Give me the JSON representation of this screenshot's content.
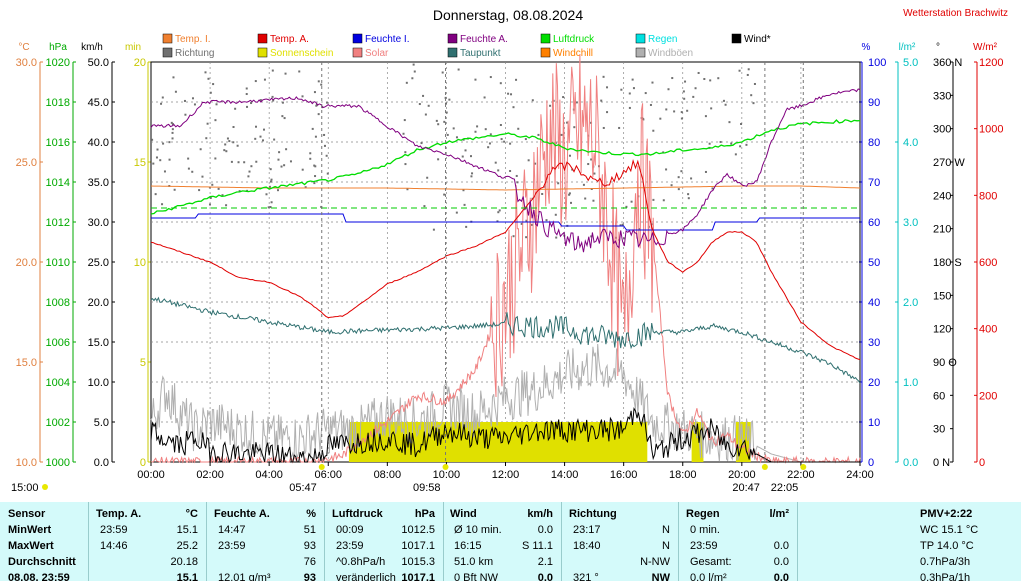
{
  "title": "Donnerstag, 08.08.2024",
  "station": "Wetterstation Brachwitz",
  "colors": {
    "temp_i": "#f08030",
    "temp_a": "#e00000",
    "feuchte_i": "#0000e0",
    "feuchte_a": "#800080",
    "luftdruck": "#00dd00",
    "regen": "#00e0e0",
    "wind": "#000000",
    "richtung": "#707070",
    "sonnenschein": "#e0e000",
    "solar": "#f08080",
    "taupunkt": "#307070",
    "windchill": "#ff8000",
    "windboeen": "#b0b0b0",
    "axis_kmh": "#000000",
    "axis_min": "#c8c800"
  },
  "legend": [
    {
      "label": "Temp. I.",
      "color": "#f08030"
    },
    {
      "label": "Temp. A.",
      "color": "#e00000"
    },
    {
      "label": "Feuchte I.",
      "color": "#0000e0"
    },
    {
      "label": "Feuchte A.",
      "color": "#800080"
    },
    {
      "label": "Luftdruck",
      "color": "#00dd00"
    },
    {
      "label": "Regen",
      "color": "#00e0e0"
    },
    {
      "label": "Wind*",
      "color": "#000000"
    },
    {
      "label": "Richtung",
      "color": "#707070"
    },
    {
      "label": "Sonnenschein",
      "color": "#e0e000"
    },
    {
      "label": "Solar",
      "color": "#f08080"
    },
    {
      "label": "Taupunkt",
      "color": "#307070"
    },
    {
      "label": "Windchill",
      "color": "#ff8000"
    },
    {
      "label": "Windböen",
      "color": "#b0b0b0"
    }
  ],
  "axis_units": {
    "celsius": "°C",
    "hpa": "hPa",
    "kmh": "km/h",
    "min": "min",
    "percent": "%",
    "lm2": "l/m²",
    "deg": "°",
    "wm2": "W/m²"
  },
  "chart_data": {
    "type": "line",
    "title": "Donnerstag, 08.08.2024",
    "x_unit": "hours",
    "xlim": [
      0,
      24
    ],
    "x_tick_labels": [
      "00:00",
      "02:00",
      "04:00",
      "06:00",
      "08:00",
      "10:00",
      "12:00",
      "14:00",
      "16:00",
      "18:00",
      "20:00",
      "22:00",
      "24:00"
    ],
    "axes": {
      "celsius": {
        "range": [
          10,
          30
        ],
        "ticks": [
          "30.0",
          "25.0",
          "20.0",
          "15.0",
          "10.0"
        ]
      },
      "hpa": {
        "range": [
          1000,
          1020
        ],
        "ticks": [
          "1020",
          "1018",
          "1016",
          "1014",
          "1012",
          "1010",
          "1008",
          "1006",
          "1004",
          "1002",
          "1000"
        ]
      },
      "kmh": {
        "range": [
          0,
          50
        ],
        "ticks": [
          "50.0",
          "45.0",
          "40.0",
          "35.0",
          "30.0",
          "25.0",
          "20.0",
          "15.0",
          "10.0",
          "5.0",
          "0.0"
        ]
      },
      "min": {
        "range": [
          0,
          20
        ],
        "ticks": [
          "20",
          "15",
          "10",
          "5",
          "0"
        ]
      },
      "percent": {
        "range": [
          0,
          100
        ],
        "ticks": [
          "100",
          "90",
          "80",
          "70",
          "60",
          "50",
          "40",
          "30",
          "20",
          "10",
          "0"
        ]
      },
      "lm2": {
        "range": [
          0,
          5
        ],
        "ticks": [
          "5.0",
          "4.0",
          "3.0",
          "2.0",
          "1.0",
          "0.0"
        ]
      },
      "deg": {
        "range": [
          0,
          360
        ],
        "ticks": [
          "360 N",
          "330",
          "300",
          "270 W",
          "240",
          "210",
          "180 S",
          "150",
          "120",
          "90 O",
          "60",
          "30",
          "0 N"
        ]
      },
      "wm2": {
        "range": [
          0,
          1200
        ],
        "ticks": [
          "1200",
          "1000",
          "800",
          "600",
          "400",
          "200",
          "0"
        ]
      }
    },
    "series": [
      {
        "name": "Temp. A.",
        "axis": "celsius",
        "x": [
          0,
          1,
          2,
          3,
          4,
          5,
          5.5,
          6,
          6.5,
          7,
          8,
          9,
          10,
          11,
          12,
          13,
          13.5,
          14,
          14.5,
          15,
          15.5,
          16,
          16.5,
          17,
          17.5,
          18,
          18.5,
          19,
          19.5,
          20,
          20.5,
          21,
          22,
          23,
          24
        ],
        "values": [
          21.0,
          20.5,
          20.0,
          19.2,
          19.0,
          18.3,
          17.8,
          17.2,
          17.3,
          17.8,
          18.9,
          19.5,
          20.3,
          20.8,
          21.5,
          23.3,
          24.5,
          24.8,
          24.6,
          24.0,
          24.0,
          24.5,
          25.0,
          21.5,
          20.0,
          19.5,
          20.0,
          21.0,
          21.5,
          21.5,
          21.0,
          19.5,
          17.0,
          15.8,
          15.1
        ]
      },
      {
        "name": "Taupunkt",
        "axis": "celsius",
        "x": [
          0,
          2,
          4,
          6,
          8,
          10,
          12,
          13,
          14,
          15,
          16,
          17,
          18,
          19,
          20,
          21,
          22,
          23,
          24
        ],
        "values": [
          18.2,
          17.5,
          17.0,
          16.5,
          16.6,
          16.7,
          16.9,
          16.8,
          16.7,
          16.3,
          16.2,
          16.5,
          16.5,
          16.8,
          16.5,
          16.0,
          15.5,
          14.9,
          14.0
        ]
      },
      {
        "name": "Temp. I.",
        "axis": "celsius",
        "x": [
          0,
          4,
          8,
          12,
          16,
          20,
          22,
          24
        ],
        "values": [
          23.8,
          23.7,
          23.7,
          23.6,
          23.7,
          23.8,
          23.8,
          23.7
        ]
      },
      {
        "name": "Feuchte A.",
        "axis": "percent",
        "x": [
          0,
          1,
          1.8,
          3,
          5,
          5.8,
          6.2,
          7,
          8,
          9,
          10,
          11,
          12,
          13,
          13.5,
          14,
          14.5,
          15,
          16,
          17,
          17.5,
          18,
          18.5,
          19,
          19.5,
          20,
          20.5,
          21,
          21.5,
          22,
          23,
          24
        ],
        "values": [
          84,
          84,
          90,
          90,
          91,
          89,
          89,
          89,
          84,
          79,
          77,
          74,
          71,
          62,
          58,
          56,
          54,
          56,
          56,
          55,
          57,
          58,
          62,
          68,
          72,
          69,
          70,
          80,
          88,
          89,
          92,
          93
        ]
      },
      {
        "name": "Feuchte I.",
        "axis": "percent",
        "x": [
          0,
          1.5,
          1.6,
          6.5,
          6.6,
          13.8,
          13.9,
          16,
          16.1,
          19,
          19.1,
          20.5,
          20.6,
          24
        ],
        "values": [
          61,
          61,
          62,
          62,
          60,
          60,
          59,
          59,
          58,
          58,
          60,
          60,
          61,
          61
        ]
      },
      {
        "name": "Luftdruck",
        "axis": "hpa",
        "x": [
          0,
          1,
          2,
          3,
          4,
          5,
          6,
          7,
          8,
          9,
          10,
          11,
          12,
          13,
          14,
          15,
          16,
          17,
          18,
          19,
          20,
          21,
          22,
          23,
          24
        ],
        "values": [
          1012.4,
          1012.8,
          1013.2,
          1013.5,
          1013.7,
          1013.9,
          1014.1,
          1014.4,
          1014.9,
          1015.6,
          1016.0,
          1016.2,
          1016.4,
          1016.2,
          1015.7,
          1015.5,
          1015.4,
          1015.4,
          1015.6,
          1015.7,
          1016.0,
          1016.6,
          1016.9,
          1017.0,
          1017.1
        ]
      },
      {
        "name": "Windböen",
        "axis": "kmh",
        "x": [
          0,
          0.5,
          1,
          1.5,
          2,
          3,
          4,
          5,
          6,
          7,
          8,
          9,
          10,
          11,
          12,
          13,
          14,
          15,
          16,
          17,
          18,
          19,
          20,
          21,
          22,
          23,
          24
        ],
        "values": [
          5,
          9,
          6,
          4,
          5,
          4,
          3,
          3,
          4,
          4,
          6,
          5,
          7,
          6,
          8,
          9,
          11,
          12,
          11,
          5,
          4,
          3,
          3,
          1,
          0,
          0,
          0
        ]
      },
      {
        "name": "Wind*",
        "axis": "kmh",
        "x": [
          0,
          0.3,
          1,
          1.5,
          2,
          3,
          4,
          5,
          5.5,
          6,
          7,
          8,
          9,
          10,
          11,
          12,
          13,
          14,
          15,
          16,
          16.5,
          17,
          17.5,
          18,
          19,
          19.5,
          20,
          20.5,
          21,
          22,
          23,
          24
        ],
        "values": [
          4,
          3,
          2,
          3,
          1.5,
          1,
          1,
          0.5,
          0.5,
          2,
          2.5,
          3,
          2,
          4,
          3,
          3,
          4,
          4,
          4,
          4,
          7,
          1,
          2,
          3,
          4,
          2,
          2,
          1,
          0,
          0,
          0,
          0
        ]
      },
      {
        "name": "Solar",
        "axis": "wm2",
        "x": [
          0,
          5.5,
          6.5,
          7,
          8,
          8.5,
          9,
          10,
          11,
          12,
          12.5,
          13,
          13.5,
          14,
          14.5,
          15,
          15.5,
          16,
          16.5,
          17,
          17.5,
          18,
          18.5,
          19,
          19.5,
          20,
          20.5,
          21,
          24
        ],
        "values": [
          0,
          0,
          20,
          60,
          120,
          160,
          200,
          180,
          280,
          500,
          620,
          800,
          1000,
          900,
          1000,
          980,
          700,
          350,
          900,
          650,
          200,
          80,
          150,
          60,
          80,
          40,
          20,
          0,
          0
        ]
      },
      {
        "name": "Sonnenschein",
        "axis": "min",
        "x": [
          6.7,
          8,
          9,
          10,
          11,
          12,
          13,
          14,
          15,
          16,
          16.8,
          18.2,
          18.4,
          18.6,
          19.6,
          19.8,
          20.3
        ],
        "values": [
          2,
          2,
          2,
          2,
          2,
          2,
          2,
          2,
          2,
          2,
          2,
          0,
          2,
          0,
          0,
          2,
          0
        ]
      }
    ],
    "richtung": {
      "axis": "deg",
      "note": "scatter of wind direction samples, mostly 240–350°, absent 06:00–08:30 and after 20:30"
    },
    "marker_lines": [
      {
        "hour": 5.78,
        "label": "05:47",
        "kind": "sunrise"
      },
      {
        "hour": 9.97,
        "label": "09:58",
        "kind": "max"
      },
      {
        "hour": 20.78,
        "label": "20:47",
        "kind": "sunset"
      },
      {
        "hour": 22.08,
        "label": "22:05",
        "kind": "moon"
      }
    ],
    "left_marker_label": "15:00"
  },
  "stats": {
    "col_sensor": {
      "header": "Sensor",
      "rows": [
        "MinWert",
        "MaxWert",
        "Durchschnitt",
        "08.08. 23:59"
      ]
    },
    "col_temp": {
      "header": "Temp. A.",
      "unit": "°C",
      "rows": [
        [
          "23:59",
          "15.1"
        ],
        [
          "14:46",
          "25.2"
        ],
        [
          "",
          "20.18"
        ],
        [
          "",
          "15.1"
        ]
      ]
    },
    "col_feuchte": {
      "header": "Feuchte A.",
      "unit": "%",
      "rows": [
        [
          "14:47",
          "51"
        ],
        [
          "23:59",
          "93"
        ],
        [
          "",
          "76"
        ],
        [
          "12.01 g/m³",
          "93"
        ]
      ]
    },
    "col_druck": {
      "header": "Luftdruck",
      "unit": "hPa",
      "rows": [
        [
          "00:09",
          "1012.5"
        ],
        [
          "23:59",
          "1017.1"
        ],
        [
          "^0.8hPa/h",
          "1015.3"
        ],
        [
          "veränderlich",
          "1017.1"
        ]
      ]
    },
    "col_wind": {
      "header": "Wind",
      "unit": "km/h",
      "rows": [
        [
          "Ø 10 min.",
          "0.0"
        ],
        [
          "16:15",
          "S 11.1"
        ],
        [
          "51.0 km",
          "2.1"
        ],
        [
          "0 Bft NW",
          "0.0"
        ]
      ]
    },
    "col_richtung": {
      "header": "Richtung",
      "rows": [
        [
          "23:17",
          "N"
        ],
        [
          "18:40",
          "N"
        ],
        [
          "",
          "N-NW"
        ],
        [
          "321 °",
          "NW"
        ]
      ]
    },
    "col_regen": {
      "header": "Regen",
      "unit": "l/m²",
      "rows": [
        [
          "0 min.",
          ""
        ],
        [
          "23:59",
          "0.0"
        ],
        [
          "Gesamt:",
          "0.0"
        ],
        [
          "0.0 l/m²",
          "0.0"
        ]
      ]
    },
    "col_pmv": {
      "header": "PMV+2:22",
      "rows": [
        "WC 15.1 °C",
        "TP 14.0 °C",
        "0.7hPa/3h",
        "0.3hPa/1h"
      ]
    }
  }
}
